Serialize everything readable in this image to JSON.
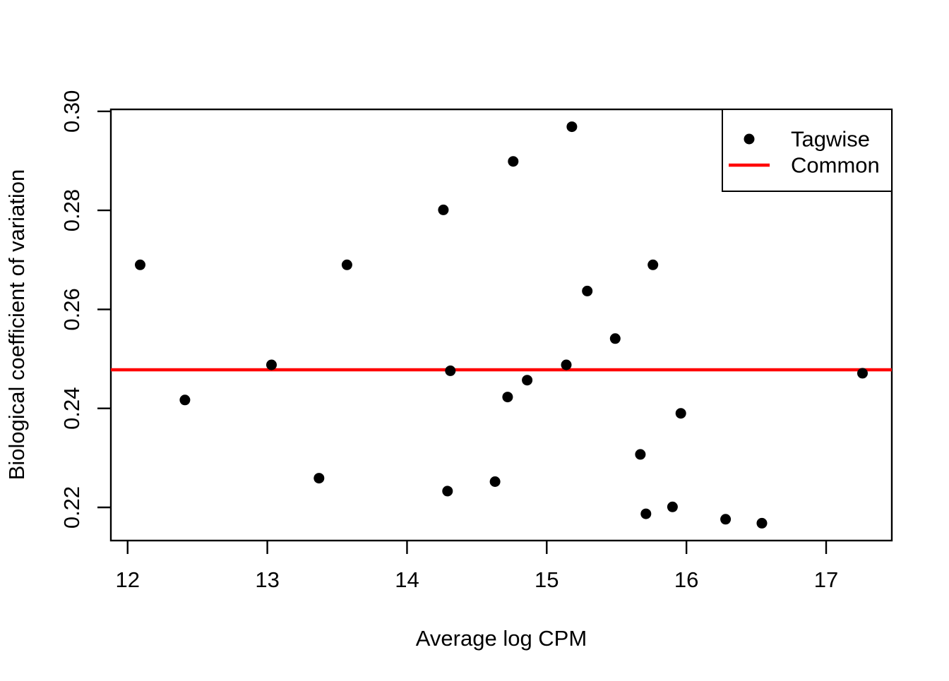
{
  "chart_data": {
    "type": "scatter",
    "title": "",
    "xlabel": "Average log CPM",
    "ylabel": "Biological coefficient of variation",
    "xlim": [
      11.88,
      17.47
    ],
    "ylim": [
      0.2133,
      0.3004
    ],
    "grid": false,
    "x_ticks": {
      "values": [
        12,
        13,
        14,
        15,
        16,
        17
      ],
      "labels": [
        "12",
        "13",
        "14",
        "15",
        "16",
        "17"
      ]
    },
    "y_ticks": {
      "values": [
        0.22,
        0.24,
        0.26,
        0.28,
        0.3
      ],
      "labels": [
        "0.22",
        "0.24",
        "0.26",
        "0.28",
        "0.30"
      ]
    },
    "colors": {
      "points": "#000000",
      "common_line": "#FF0000",
      "axis": "#000000",
      "background": "#FFFFFF"
    },
    "legend": {
      "position": "top-right",
      "entries": [
        {
          "label": "Tagwise",
          "marker": "point",
          "color": "#000000"
        },
        {
          "label": "Common",
          "marker": "line",
          "color": "#FF0000"
        }
      ]
    },
    "series": [
      {
        "name": "Tagwise",
        "type": "scatter",
        "color": "#000000",
        "points": [
          [
            12.09,
            0.269
          ],
          [
            12.41,
            0.2417
          ],
          [
            13.03,
            0.2488
          ],
          [
            13.37,
            0.2259
          ],
          [
            13.57,
            0.269
          ],
          [
            14.26,
            0.2801
          ],
          [
            14.29,
            0.2233
          ],
          [
            14.31,
            0.2476
          ],
          [
            14.63,
            0.2252
          ],
          [
            14.72,
            0.2423
          ],
          [
            14.76,
            0.2899
          ],
          [
            14.86,
            0.2457
          ],
          [
            15.14,
            0.2488
          ],
          [
            15.18,
            0.2969
          ],
          [
            15.29,
            0.2637
          ],
          [
            15.49,
            0.2541
          ],
          [
            15.67,
            0.2307
          ],
          [
            15.71,
            0.2187
          ],
          [
            15.76,
            0.269
          ],
          [
            15.9,
            0.2201
          ],
          [
            15.96,
            0.239
          ],
          [
            16.28,
            0.2176
          ],
          [
            16.54,
            0.2168
          ],
          [
            17.26,
            0.2471
          ]
        ]
      },
      {
        "name": "Common",
        "type": "hline",
        "color": "#FF0000",
        "y": 0.2478
      }
    ]
  }
}
